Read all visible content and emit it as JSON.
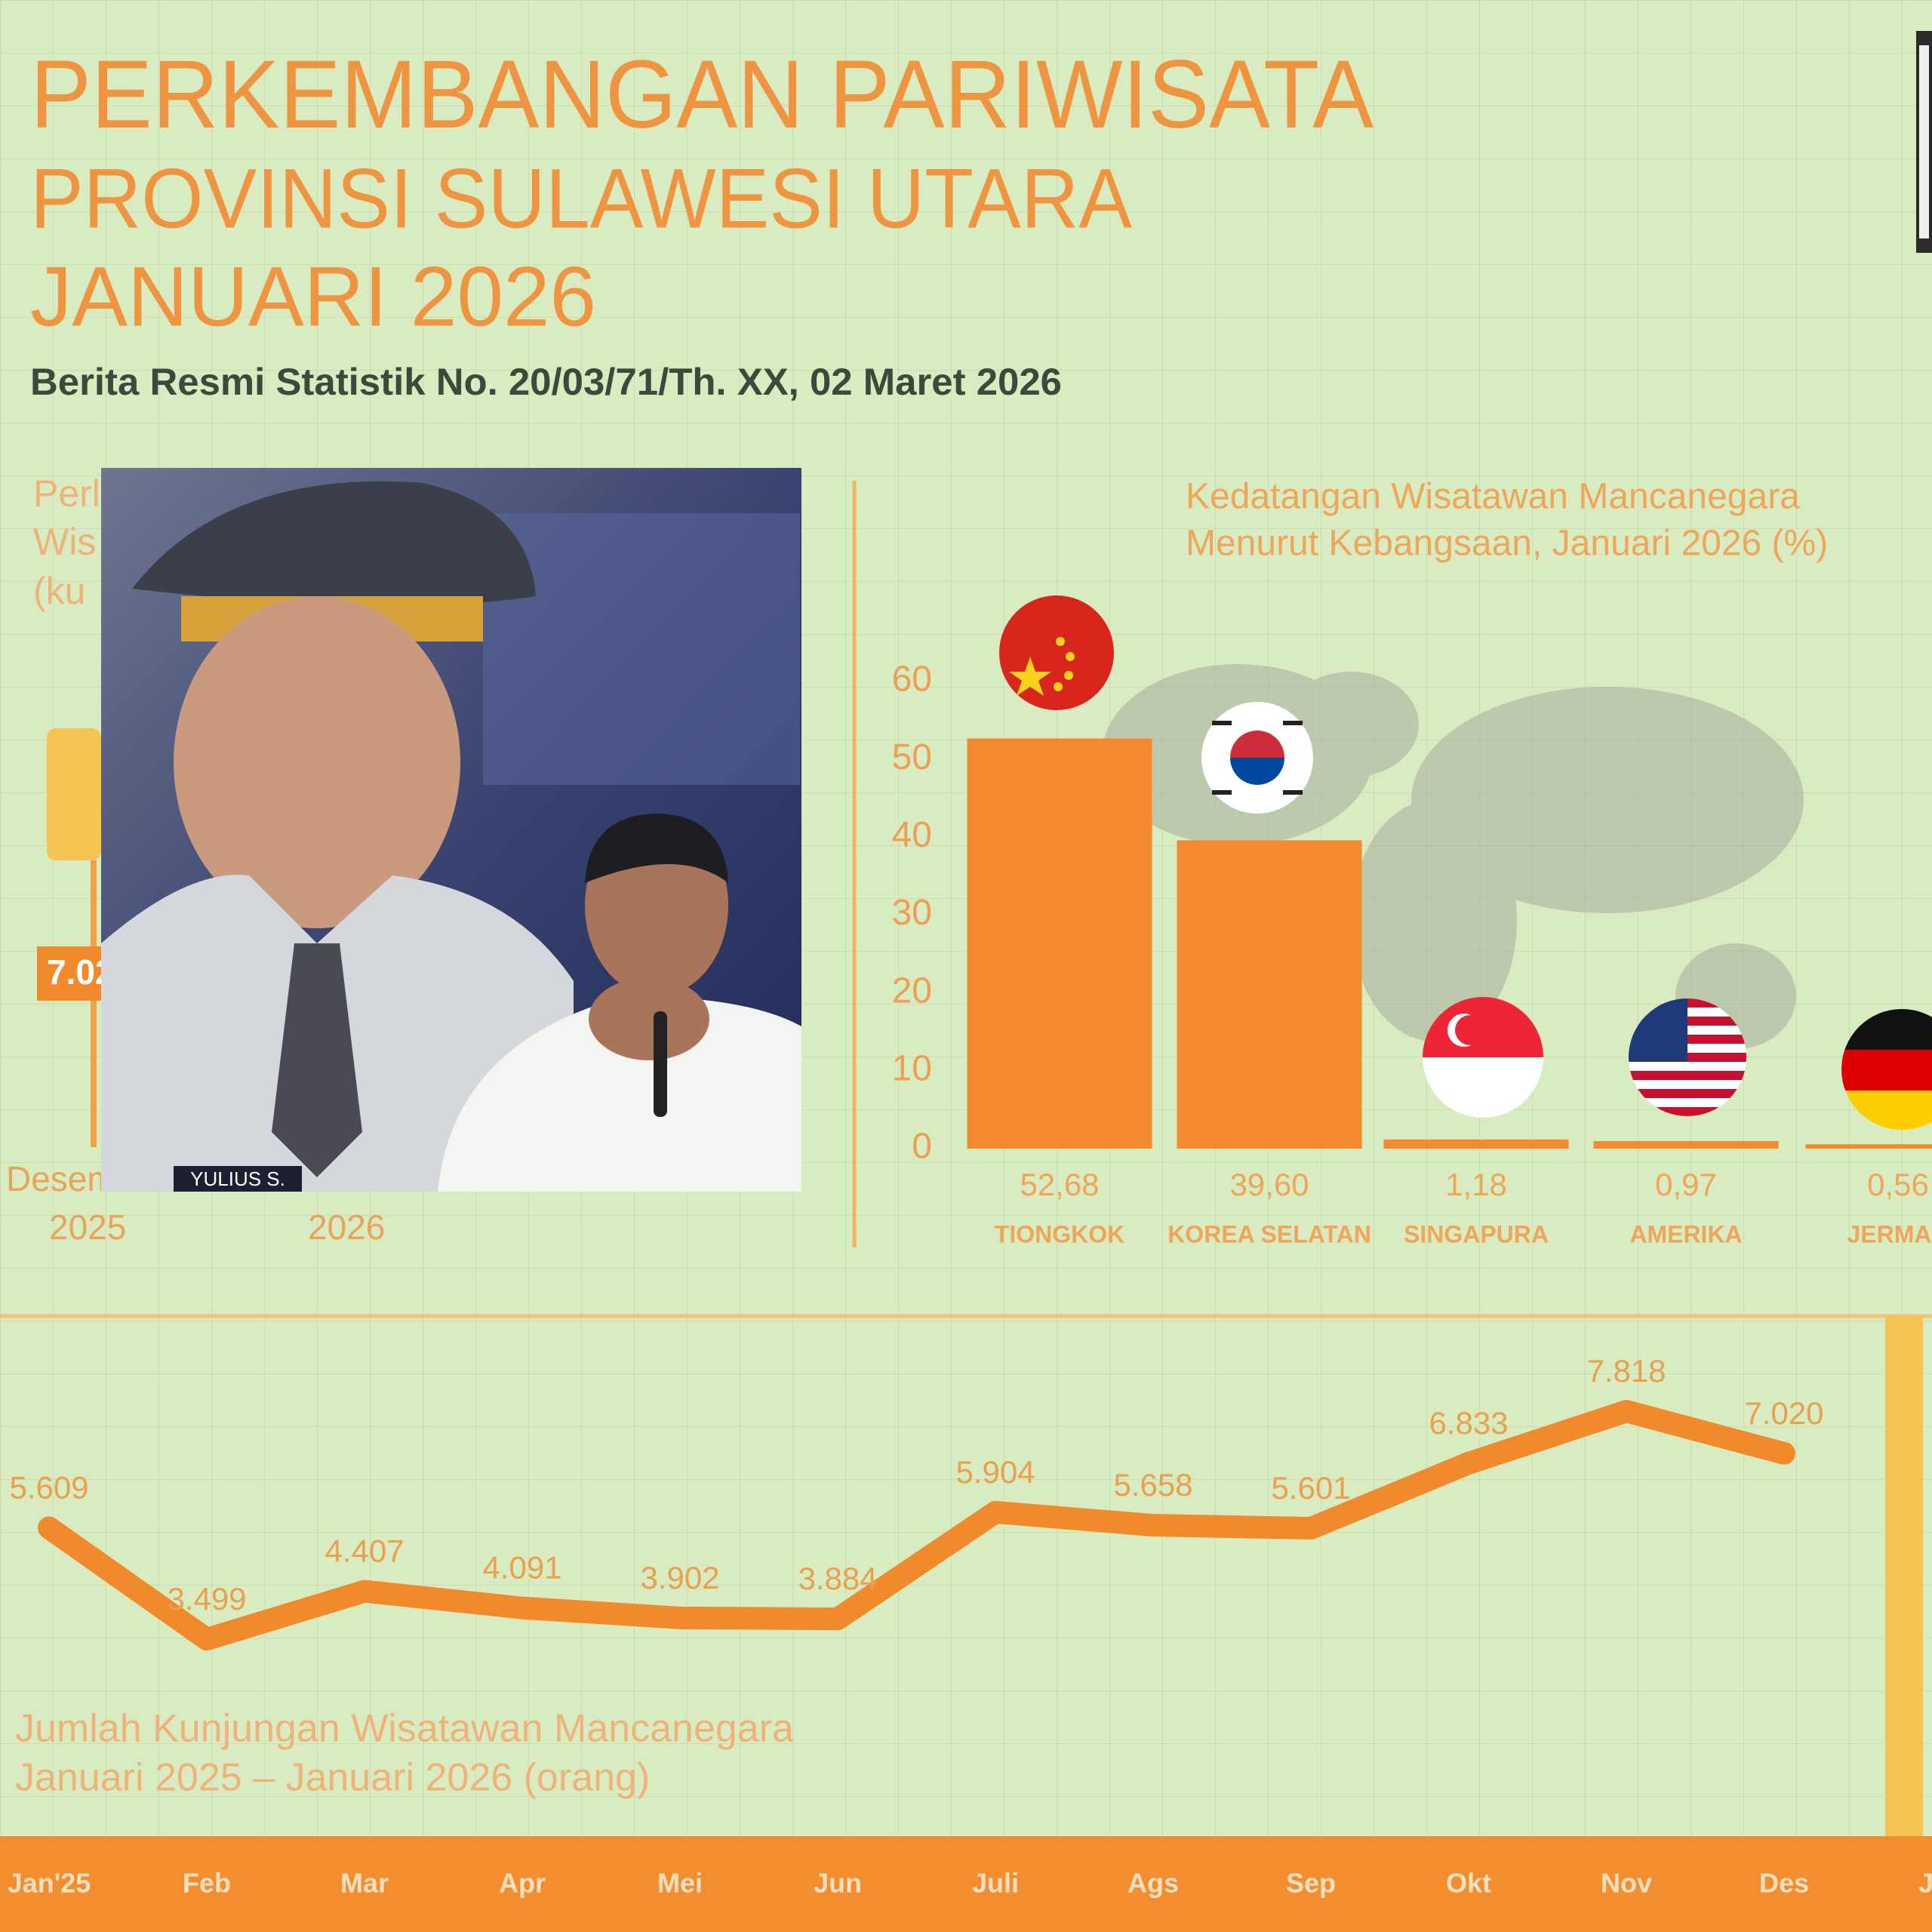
{
  "header": {
    "title": "PERKEMBANGAN PARIWISATA",
    "title_line2": "PROVINSI SULAWESI UTARA",
    "title_line3": "JANUARI 2026",
    "subtitle": "Berita Resmi Statistik No. 20/03/71/Th. XX, 02 Maret 2026"
  },
  "left_panel": {
    "title_lines": [
      "Perl",
      "Wis",
      "(ku"
    ],
    "value_label": "7.02",
    "x_labels": [
      "Desem",
      "2025",
      "2026"
    ]
  },
  "photo": {
    "name_tag": "YULIUS S."
  },
  "chart_data": [
    {
      "type": "bar",
      "title_lines": [
        "Kedatangan Wisatawan Mancanegara",
        "Menurut Kebangsaan, Januari 2026 (%)"
      ],
      "categories": [
        "TIONGKOK",
        "KOREA SELATAN",
        "SINGAPURA",
        "AMERIKA",
        "JERMAN"
      ],
      "values": [
        52.68,
        39.6,
        1.18,
        0.97,
        0.56
      ],
      "value_labels": [
        "52,68",
        "39,60",
        "1,18",
        "0,97",
        "0,56"
      ],
      "color": "#f48a2f",
      "ylim": [
        0,
        60
      ],
      "yticks": [
        0,
        10,
        20,
        30,
        40,
        50,
        60
      ]
    },
    {
      "type": "line",
      "title_lines": [
        "Jumlah Kunjungan Wisatawan Mancanegara",
        "Januari 2025 – Januari 2026 (orang)"
      ],
      "categories": [
        "Jan'25",
        "Feb",
        "Mar",
        "Apr",
        "Mei",
        "Jun",
        "Juli",
        "Ags",
        "Sep",
        "Okt",
        "Nov",
        "Des",
        "Jan"
      ],
      "values": [
        5609,
        3499,
        4407,
        4091,
        3902,
        3884,
        5904,
        5658,
        5601,
        6833,
        7818,
        7020,
        null
      ],
      "value_labels": [
        "5.609",
        "3.499",
        "4.407",
        "4.091",
        "3.902",
        "3.884",
        "5.904",
        "5.658",
        "5.601",
        "6.833",
        "7.818",
        "7.020",
        null
      ],
      "color": "#f08a2c"
    }
  ]
}
